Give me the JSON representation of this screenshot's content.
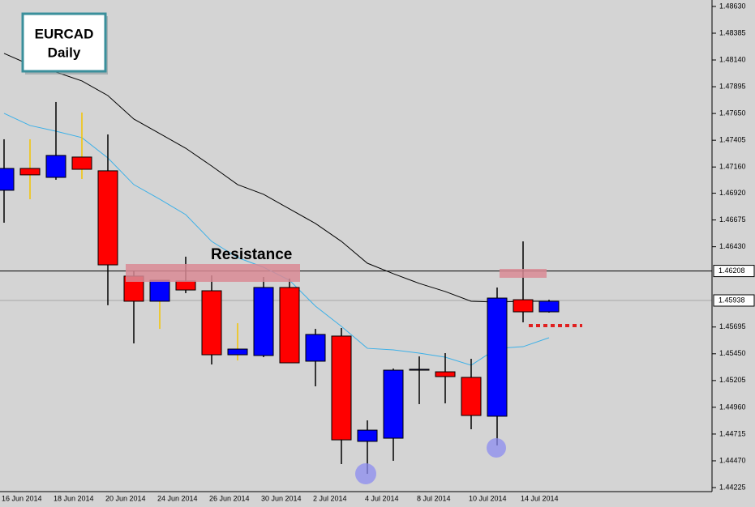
{
  "chart_data": {
    "type": "candlestick",
    "title": "EURCAD",
    "subtitle": "Daily",
    "annotation": "Resistance",
    "categories": [
      "16 Jun 2014",
      null,
      "18 Jun 2014",
      null,
      "20 Jun 2014",
      null,
      "24 Jun 2014",
      null,
      "26 Jun 2014",
      null,
      "30 Jun 2014",
      null,
      "2 Jul 2014",
      null,
      "4 Jul 2014",
      null,
      "8 Jul 2014",
      null,
      "10 Jul 2014",
      null,
      "14 Jul 2014",
      null
    ],
    "open": [
      1.46947,
      1.47147,
      1.47065,
      1.47251,
      1.47125,
      1.46161,
      1.45931,
      1.46116,
      1.46027,
      1.45441,
      1.45434,
      1.46057,
      1.45382,
      1.45612,
      1.44648,
      1.44677,
      1.453,
      1.45285,
      1.45234,
      1.44878,
      1.45945,
      1.45834
    ],
    "high": [
      1.47414,
      1.47414,
      1.47755,
      1.47659,
      1.47458,
      1.46212,
      1.46123,
      1.46339,
      1.46168,
      1.4573,
      1.46153,
      1.46138,
      1.45678,
      1.45686,
      1.4484,
      1.45315,
      1.45426,
      1.45456,
      1.45404,
      1.46057,
      1.46479,
      1.45945
    ],
    "low": [
      1.4665,
      1.46865,
      1.47043,
      1.4705,
      1.45894,
      1.45545,
      1.45678,
      1.46005,
      1.45352,
      1.45389,
      1.45419,
      1.45367,
      1.45152,
      1.4444,
      1.44351,
      1.4447,
      1.44989,
      1.44996,
      1.44759,
      1.44611,
      1.45738,
      1.45827
    ],
    "close": [
      1.47147,
      1.47088,
      1.47266,
      1.47139,
      1.46264,
      1.45931,
      1.46123,
      1.46034,
      1.45441,
      1.45493,
      1.46057,
      1.45367,
      1.45627,
      1.44662,
      1.44751,
      1.453,
      1.45308,
      1.45241,
      1.44885,
      1.4596,
      1.45834,
      1.45931
    ],
    "up_color": "#0000ff",
    "down_color": "#ff0000",
    "wick_colors": [
      "#000000",
      "#f5c400",
      "#000000",
      "#f5c400",
      "#000000",
      "#000000",
      "#f5c400",
      "#000000",
      "#000000",
      "#f5c400",
      "#000000",
      "#000000",
      "#000000",
      "#000000",
      "#000000",
      "#000000",
      "#000000",
      "#000000",
      "#000000",
      "#000000",
      "#000000",
      "#000000"
    ],
    "lines": [
      {
        "color": "#000000",
        "values": [
          1.482,
          1.48096,
          1.48029,
          1.47948,
          1.47814,
          1.47599,
          1.47466,
          1.47332,
          1.47169,
          1.46999,
          1.4691,
          1.46776,
          1.46643,
          1.46479,
          1.46279,
          1.46183,
          1.46094,
          1.4602,
          1.45931,
          1.45923,
          1.45931,
          1.45931
        ]
      },
      {
        "color": "#3bb0e8",
        "values": [
          1.47651,
          1.4754,
          1.47488,
          1.47429,
          1.47243,
          1.46999,
          1.46865,
          1.46724,
          1.46479,
          1.46331,
          1.46242,
          1.46123,
          1.45886,
          1.45701,
          1.455,
          1.45486,
          1.45456,
          1.45419,
          1.45345,
          1.455,
          1.45515,
          1.45597
        ]
      }
    ],
    "price_lines": [
      {
        "value": 1.46208,
        "color": "#000000"
      },
      {
        "value": 1.45938,
        "color": "#a8a8a8"
      }
    ],
    "ylim": [
      1.44188,
      1.48689
    ],
    "yticks": [
      {
        "value": 1.4863,
        "label": "1.48630"
      },
      1.48385,
      {
        "value": 1.4814,
        "label": "1.48140"
      },
      1.47895,
      {
        "value": 1.4765,
        "label": "1.47650"
      },
      1.47405,
      {
        "value": 1.4716,
        "label": "1.47160"
      },
      {
        "value": 1.4692,
        "label": "1.46920"
      },
      1.46675,
      {
        "value": 1.4643,
        "label": "1.46430"
      },
      1.45695,
      {
        "value": 1.4545,
        "label": "1.45450"
      },
      1.45205,
      {
        "value": 1.4496,
        "label": "1.44960"
      },
      1.44715,
      {
        "value": 1.4447,
        "label": "1.44470"
      },
      1.44225
    ]
  }
}
